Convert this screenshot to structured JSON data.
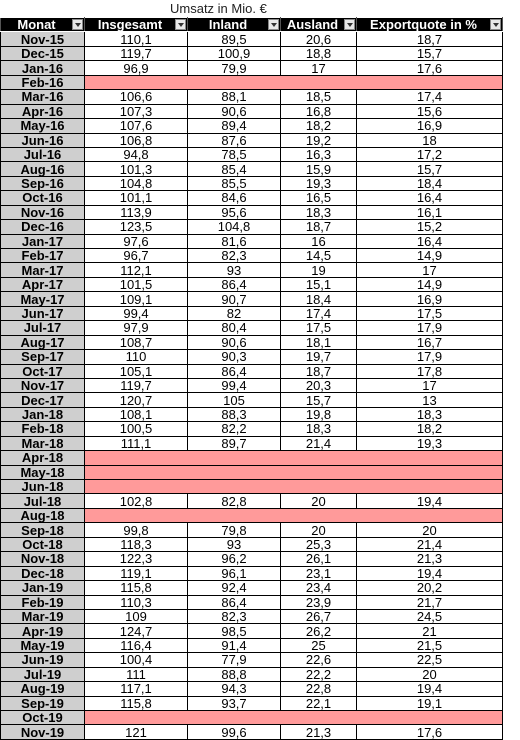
{
  "title": "Umsatz in Mio. €",
  "columns": [
    "Monat",
    "Insgesamt",
    "Inland",
    "Ausland",
    "Exportquote in %"
  ],
  "rows": [
    [
      "Nov-15",
      "110,1",
      "89,5",
      "20,6",
      "18,7"
    ],
    [
      "Dec-15",
      "119,7",
      "100,9",
      "18,8",
      "15,7"
    ],
    [
      "Jan-16",
      "96,9",
      "79,9",
      "17",
      "17,6"
    ],
    [
      "Feb-16",
      null,
      null,
      null,
      null
    ],
    [
      "Mar-16",
      "106,6",
      "88,1",
      "18,5",
      "17,4"
    ],
    [
      "Apr-16",
      "107,3",
      "90,6",
      "16,8",
      "15,6"
    ],
    [
      "May-16",
      "107,6",
      "89,4",
      "18,2",
      "16,9"
    ],
    [
      "Jun-16",
      "106,8",
      "87,6",
      "19,2",
      "18"
    ],
    [
      "Jul-16",
      "94,8",
      "78,5",
      "16,3",
      "17,2"
    ],
    [
      "Aug-16",
      "101,3",
      "85,4",
      "15,9",
      "15,7"
    ],
    [
      "Sep-16",
      "104,8",
      "85,5",
      "19,3",
      "18,4"
    ],
    [
      "Oct-16",
      "101,1",
      "84,6",
      "16,5",
      "16,4"
    ],
    [
      "Nov-16",
      "113,9",
      "95,6",
      "18,3",
      "16,1"
    ],
    [
      "Dec-16",
      "123,5",
      "104,8",
      "18,7",
      "15,2"
    ],
    [
      "Jan-17",
      "97,6",
      "81,6",
      "16",
      "16,4"
    ],
    [
      "Feb-17",
      "96,7",
      "82,3",
      "14,5",
      "14,9"
    ],
    [
      "Mar-17",
      "112,1",
      "93",
      "19",
      "17"
    ],
    [
      "Apr-17",
      "101,5",
      "86,4",
      "15,1",
      "14,9"
    ],
    [
      "May-17",
      "109,1",
      "90,7",
      "18,4",
      "16,9"
    ],
    [
      "Jun-17",
      "99,4",
      "82",
      "17,4",
      "17,5"
    ],
    [
      "Jul-17",
      "97,9",
      "80,4",
      "17,5",
      "17,9"
    ],
    [
      "Aug-17",
      "108,7",
      "90,6",
      "18,1",
      "16,7"
    ],
    [
      "Sep-17",
      "110",
      "90,3",
      "19,7",
      "17,9"
    ],
    [
      "Oct-17",
      "105,1",
      "86,4",
      "18,7",
      "17,8"
    ],
    [
      "Nov-17",
      "119,7",
      "99,4",
      "20,3",
      "17"
    ],
    [
      "Dec-17",
      "120,7",
      "105",
      "15,7",
      "13"
    ],
    [
      "Jan-18",
      "108,1",
      "88,3",
      "19,8",
      "18,3"
    ],
    [
      "Feb-18",
      "100,5",
      "82,2",
      "18,3",
      "18,2"
    ],
    [
      "Mar-18",
      "111,1",
      "89,7",
      "21,4",
      "19,3"
    ],
    [
      "Apr-18",
      null,
      null,
      null,
      null
    ],
    [
      "May-18",
      null,
      null,
      null,
      null
    ],
    [
      "Jun-18",
      null,
      null,
      null,
      null
    ],
    [
      "Jul-18",
      "102,8",
      "82,8",
      "20",
      "19,4"
    ],
    [
      "Aug-18",
      null,
      null,
      null,
      null
    ],
    [
      "Sep-18",
      "99,8",
      "79,8",
      "20",
      "20"
    ],
    [
      "Oct-18",
      "118,3",
      "93",
      "25,3",
      "21,4"
    ],
    [
      "Nov-18",
      "122,3",
      "96,2",
      "26,1",
      "21,3"
    ],
    [
      "Dec-18",
      "119,1",
      "96,1",
      "23,1",
      "19,4"
    ],
    [
      "Jan-19",
      "115,8",
      "92,4",
      "23,4",
      "20,2"
    ],
    [
      "Feb-19",
      "110,3",
      "86,4",
      "23,9",
      "21,7"
    ],
    [
      "Mar-19",
      "109",
      "82,3",
      "26,7",
      "24,5"
    ],
    [
      "Apr-19",
      "124,7",
      "98,5",
      "26,2",
      "21"
    ],
    [
      "May-19",
      "116,4",
      "91,4",
      "25",
      "21,5"
    ],
    [
      "Jun-19",
      "100,4",
      "77,9",
      "22,6",
      "22,5"
    ],
    [
      "Jul-19",
      "111",
      "88,8",
      "22,2",
      "20"
    ],
    [
      "Aug-19",
      "117,1",
      "94,3",
      "22,8",
      "19,4"
    ],
    [
      "Sep-19",
      "115,8",
      "93,7",
      "22,1",
      "19,1"
    ],
    [
      "Oct-19",
      null,
      null,
      null,
      null
    ],
    [
      "Nov-19",
      "121",
      "99,6",
      "21,3",
      "17,6"
    ]
  ],
  "colors": {
    "header_bg": "#000000",
    "header_text": "#ffffff",
    "month_bg": "#cfcfcf",
    "missing_bg": "#ff9a9a"
  },
  "icons": {
    "filter": "filter-dropdown-icon"
  }
}
